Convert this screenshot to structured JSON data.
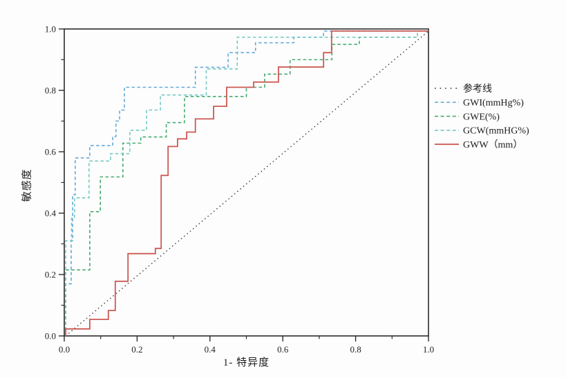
{
  "figure": {
    "type": "roc-curve-figure",
    "background": "#fdfdfd"
  },
  "chart_data": {
    "type": "line",
    "subtype": "roc-step-curves",
    "title": "",
    "xlabel": "1- 特异度",
    "ylabel": "敏感度",
    "xlim": [
      0,
      1
    ],
    "ylim": [
      0,
      1
    ],
    "grid": false,
    "frame": "full-box",
    "axis_color": "#2a2a2a",
    "x_ticks": {
      "values": [
        0,
        0.2,
        0.4,
        0.6,
        0.8,
        1.0
      ],
      "labels": [
        "0.0",
        "0.2",
        "0.4",
        "0.6",
        "0.8",
        "1.0"
      ],
      "minor": [
        0.1,
        0.3,
        0.5,
        0.7,
        0.9
      ]
    },
    "y_ticks": {
      "values": [
        0,
        0.2,
        0.4,
        0.6,
        0.8,
        1.0
      ],
      "labels": [
        "0.0",
        "0.2",
        "0.4",
        "0.6",
        "0.8",
        "1.0"
      ],
      "minor": [
        0.1,
        0.3,
        0.5,
        0.7,
        0.9
      ]
    },
    "legend": {
      "position": "right-outside"
    },
    "series": [
      {
        "id": "reference",
        "label": "参考线",
        "color": "#2a2a2a",
        "style": "dotted",
        "width": 1.4,
        "points": [
          [
            0,
            0
          ],
          [
            1,
            1
          ]
        ]
      },
      {
        "id": "gwi",
        "label": "GWI(mmHg%)",
        "color": "#64a9da",
        "style": "dashed",
        "width": 1.6,
        "points": [
          [
            0,
            0
          ],
          [
            0.004,
            0
          ],
          [
            0.004,
            0.17
          ],
          [
            0.019,
            0.17
          ],
          [
            0.019,
            0.31
          ],
          [
            0.023,
            0.31
          ],
          [
            0.023,
            0.46
          ],
          [
            0.03,
            0.46
          ],
          [
            0.03,
            0.58
          ],
          [
            0.07,
            0.58
          ],
          [
            0.07,
            0.62
          ],
          [
            0.133,
            0.62
          ],
          [
            0.133,
            0.65
          ],
          [
            0.142,
            0.65
          ],
          [
            0.142,
            0.7
          ],
          [
            0.152,
            0.7
          ],
          [
            0.152,
            0.736
          ],
          [
            0.165,
            0.736
          ],
          [
            0.165,
            0.81
          ],
          [
            0.36,
            0.81
          ],
          [
            0.36,
            0.875
          ],
          [
            0.45,
            0.875
          ],
          [
            0.45,
            0.923
          ],
          [
            0.525,
            0.923
          ],
          [
            0.525,
            0.955
          ],
          [
            0.63,
            0.955
          ],
          [
            0.63,
            0.973
          ],
          [
            0.712,
            0.973
          ],
          [
            0.712,
            1
          ],
          [
            1,
            1
          ]
        ]
      },
      {
        "id": "gwe",
        "label": "GWE(%)",
        "color": "#44aa6e",
        "style": "dashed",
        "width": 1.6,
        "points": [
          [
            0,
            0
          ],
          [
            0,
            0.215
          ],
          [
            0.07,
            0.215
          ],
          [
            0.07,
            0.405
          ],
          [
            0.099,
            0.405
          ],
          [
            0.099,
            0.518
          ],
          [
            0.161,
            0.518
          ],
          [
            0.161,
            0.628
          ],
          [
            0.21,
            0.628
          ],
          [
            0.21,
            0.648
          ],
          [
            0.28,
            0.648
          ],
          [
            0.28,
            0.695
          ],
          [
            0.33,
            0.695
          ],
          [
            0.33,
            0.78
          ],
          [
            0.5,
            0.78
          ],
          [
            0.5,
            0.81
          ],
          [
            0.55,
            0.81
          ],
          [
            0.55,
            0.853
          ],
          [
            0.62,
            0.853
          ],
          [
            0.62,
            0.9
          ],
          [
            0.735,
            0.9
          ],
          [
            0.735,
            0.95
          ],
          [
            0.81,
            0.95
          ],
          [
            0.81,
            0.973
          ],
          [
            0.97,
            0.973
          ],
          [
            0.97,
            1
          ],
          [
            1,
            1
          ]
        ]
      },
      {
        "id": "gcw",
        "label": "GCW(mmHG%)",
        "color": "#74c9c2",
        "style": "dashed",
        "width": 1.6,
        "points": [
          [
            0,
            0
          ],
          [
            0,
            0.31
          ],
          [
            0.02,
            0.31
          ],
          [
            0.02,
            0.383
          ],
          [
            0.028,
            0.383
          ],
          [
            0.028,
            0.45
          ],
          [
            0.068,
            0.45
          ],
          [
            0.068,
            0.57
          ],
          [
            0.127,
            0.57
          ],
          [
            0.127,
            0.594
          ],
          [
            0.18,
            0.594
          ],
          [
            0.18,
            0.67
          ],
          [
            0.226,
            0.67
          ],
          [
            0.226,
            0.736
          ],
          [
            0.264,
            0.736
          ],
          [
            0.264,
            0.785
          ],
          [
            0.39,
            0.785
          ],
          [
            0.39,
            0.87
          ],
          [
            0.475,
            0.87
          ],
          [
            0.475,
            0.973
          ],
          [
            0.97,
            0.973
          ],
          [
            0.97,
            1
          ],
          [
            1,
            1
          ]
        ]
      },
      {
        "id": "gww",
        "label": "GWW（mm）",
        "color": "#cc5852",
        "style": "solid",
        "width": 1.8,
        "points": [
          [
            0,
            0
          ],
          [
            0.004,
            0
          ],
          [
            0.004,
            0.023
          ],
          [
            0.07,
            0.023
          ],
          [
            0.07,
            0.054
          ],
          [
            0.121,
            0.054
          ],
          [
            0.121,
            0.083
          ],
          [
            0.14,
            0.083
          ],
          [
            0.14,
            0.178
          ],
          [
            0.175,
            0.178
          ],
          [
            0.175,
            0.268
          ],
          [
            0.25,
            0.268
          ],
          [
            0.25,
            0.285
          ],
          [
            0.266,
            0.285
          ],
          [
            0.266,
            0.523
          ],
          [
            0.285,
            0.523
          ],
          [
            0.285,
            0.617
          ],
          [
            0.311,
            0.617
          ],
          [
            0.311,
            0.642
          ],
          [
            0.336,
            0.642
          ],
          [
            0.336,
            0.664
          ],
          [
            0.36,
            0.664
          ],
          [
            0.36,
            0.707
          ],
          [
            0.41,
            0.707
          ],
          [
            0.41,
            0.748
          ],
          [
            0.446,
            0.748
          ],
          [
            0.446,
            0.81
          ],
          [
            0.52,
            0.81
          ],
          [
            0.52,
            0.827
          ],
          [
            0.588,
            0.827
          ],
          [
            0.588,
            0.876
          ],
          [
            0.712,
            0.876
          ],
          [
            0.712,
            0.923
          ],
          [
            0.734,
            0.923
          ],
          [
            0.734,
            1
          ],
          [
            1,
            1
          ]
        ]
      }
    ]
  }
}
